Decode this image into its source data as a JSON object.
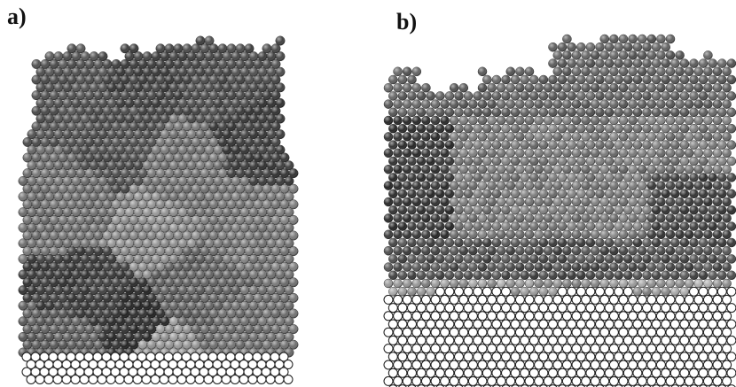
{
  "figure": {
    "panel_a": {
      "label": "a)",
      "description_shape": "3d-atomistic-block"
    },
    "panel_b": {
      "label": "b)",
      "description_shape": "2d-atomistic-slice"
    }
  }
}
